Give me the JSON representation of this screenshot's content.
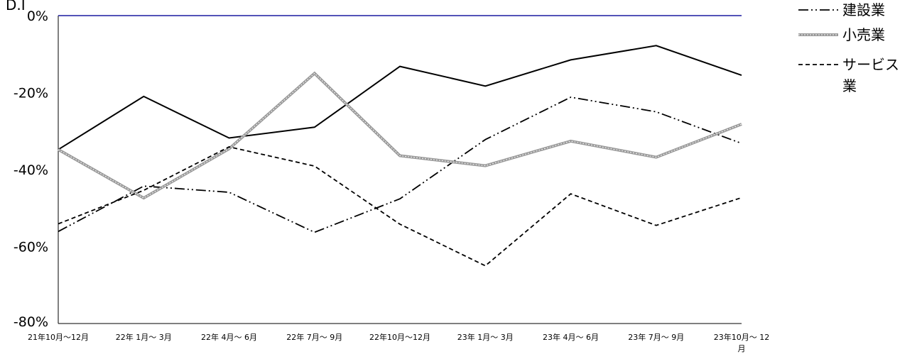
{
  "chart_data": {
    "type": "line",
    "ylabel": "D.I",
    "categories": [
      "21年10月～12月",
      "22年 1月～ 3月",
      "22年 4月～ 6月",
      "22年 7月～ 9月",
      "22年10月～12月",
      "23年 1月～ 3月",
      "23年 4月～ 6月",
      "23年 7月～ 9月",
      "23年10月～ 12月"
    ],
    "ylim": [
      -80,
      0
    ],
    "yticks": [
      "0%",
      "-20%",
      "-40%",
      "-60%",
      "-80%"
    ],
    "ytick_values": [
      0,
      -20,
      -40,
      -60,
      -80
    ],
    "series": [
      {
        "style": "solid",
        "color": "#000000",
        "values": [
          -34.8,
          -21.0,
          -31.8,
          -29.0,
          -13.2,
          -18.3,
          -11.5,
          -7.8,
          -15.5
        ]
      },
      {
        "name": "建設業",
        "style": "dashdotdot",
        "color": "#000000",
        "values": [
          -56.1,
          -44.3,
          -45.9,
          -56.3,
          -47.6,
          -32.2,
          -21.2,
          -25.0,
          -33.2
        ]
      },
      {
        "name": "小売業",
        "style": "double",
        "color": "#999999",
        "values": [
          -34.8,
          -47.4,
          -34.6,
          -15.0,
          -36.4,
          -39.0,
          -32.6,
          -36.8,
          -28.2
        ]
      },
      {
        "name": "サービス業",
        "style": "dashed",
        "color": "#000000",
        "values": [
          -54.1,
          -45.4,
          -34.1,
          -39.1,
          -54.2,
          -65.0,
          -46.3,
          -54.5,
          -47.3
        ]
      }
    ],
    "zero_line_color": "#1a1aa0",
    "legend_position": "top-right",
    "grid": false
  }
}
